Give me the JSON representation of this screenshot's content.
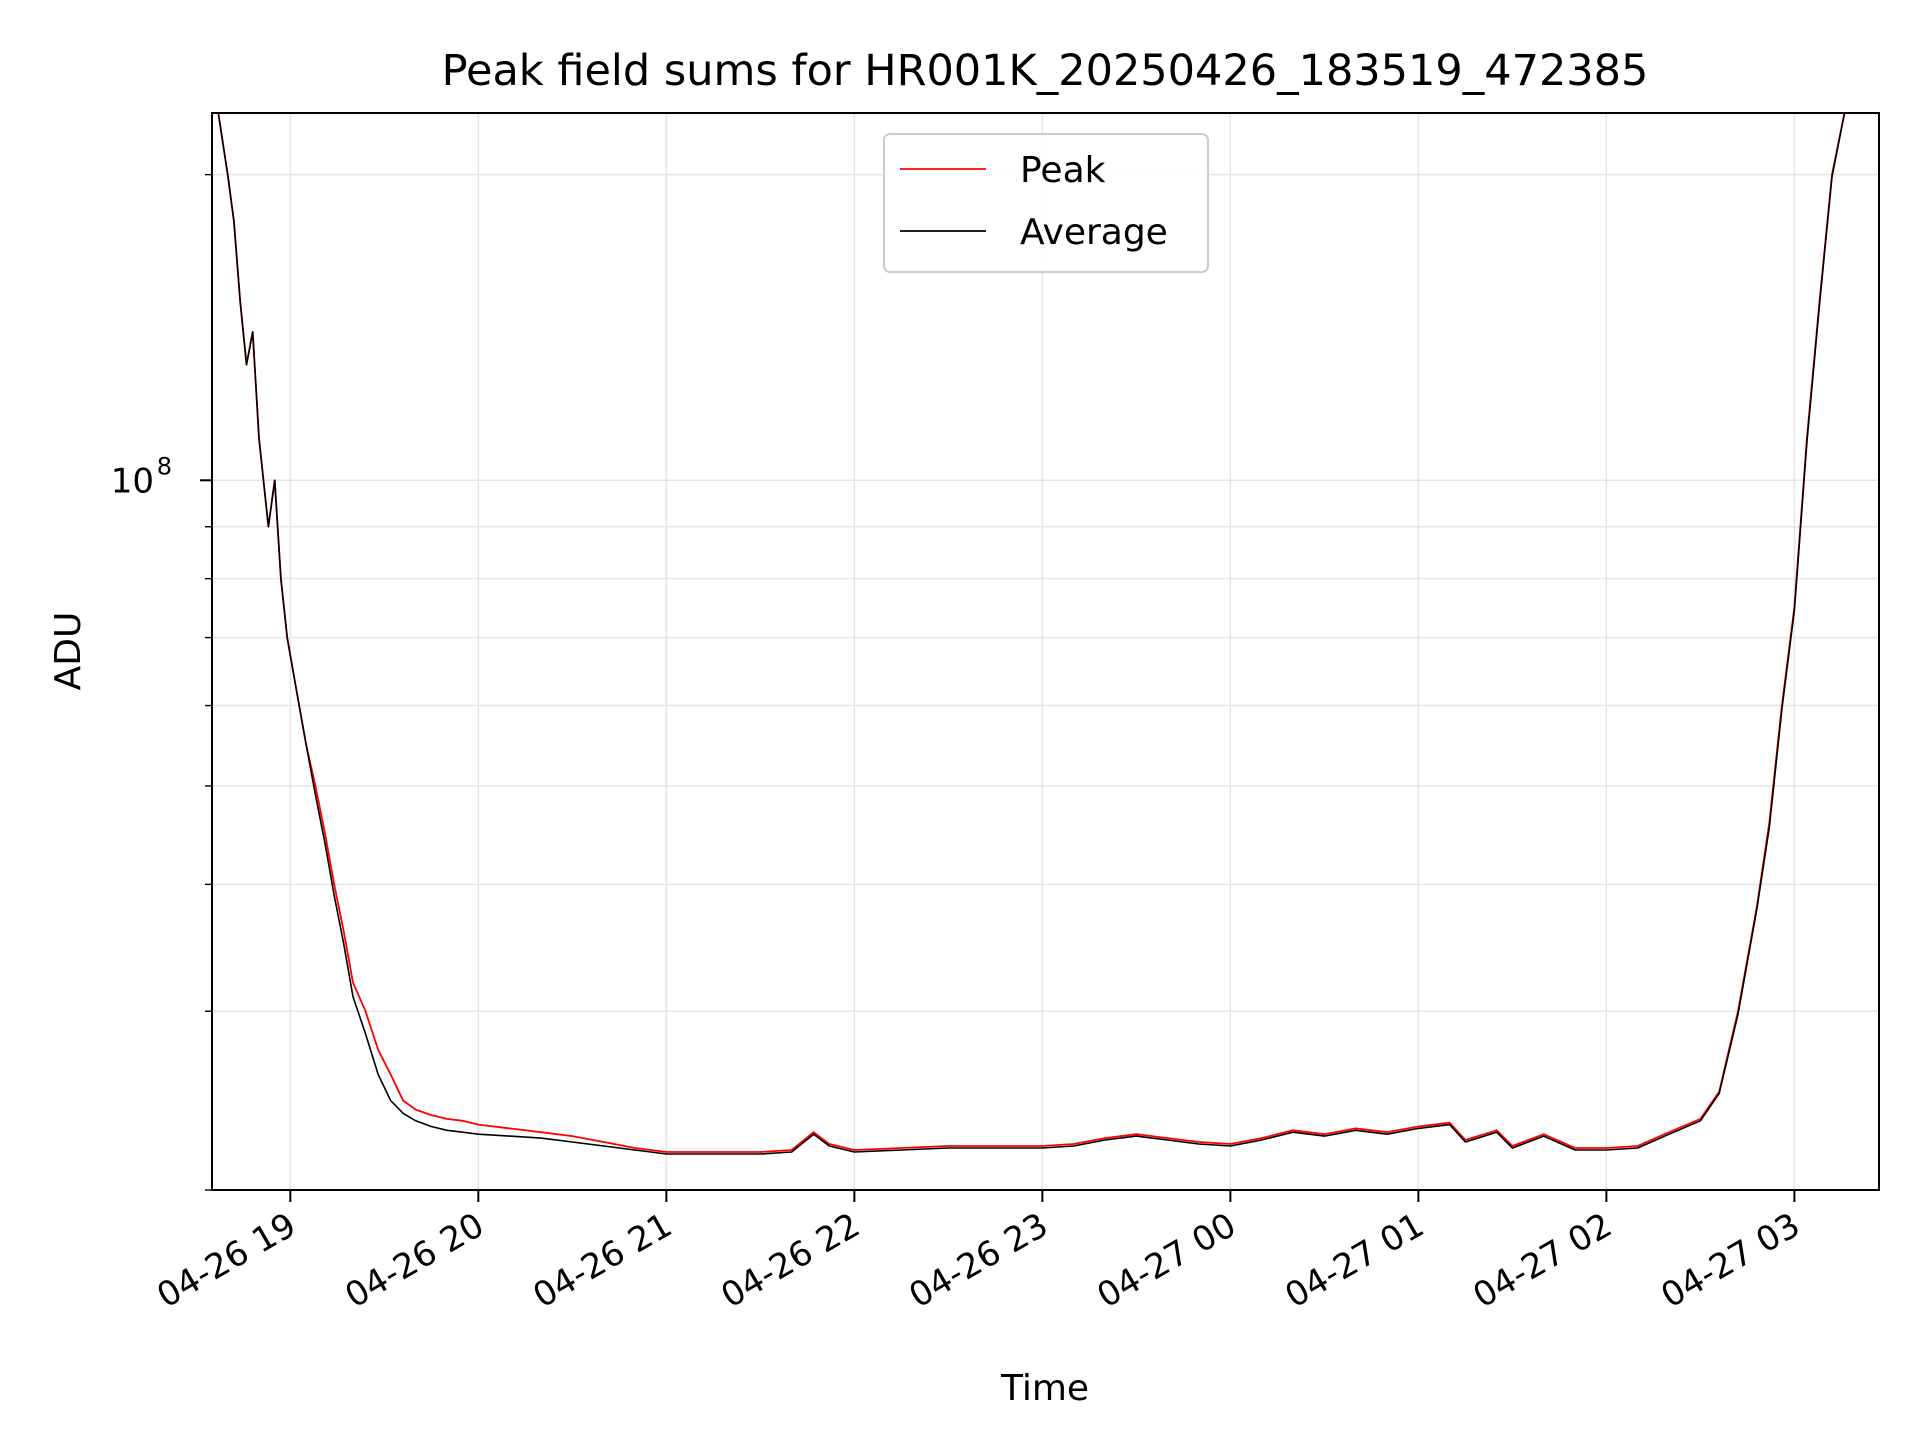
{
  "chart_data": {
    "type": "line",
    "title": "Peak field sums for HR001K_20250426_183519_472385",
    "xlabel": "Time",
    "ylabel": "ADU",
    "y_scale": "log",
    "xlim": [
      "2025-04-26 18:35",
      "2025-04-27 03:27"
    ],
    "ylim": [
      20000000,
      230000000
    ],
    "grid": true,
    "legend_position": "top-center",
    "x_ticks": [
      "04-26 19",
      "04-26 20",
      "04-26 21",
      "04-26 22",
      "04-26 23",
      "04-27 00",
      "04-27 01",
      "04-27 02",
      "04-27 03"
    ],
    "y_ticks": [
      {
        "value": 100000000,
        "label": "10",
        "exponent": "8"
      }
    ],
    "series": [
      {
        "name": "Peak",
        "color": "#ff0000",
        "points": [
          [
            "2025-04-26 18:37",
            230000000
          ],
          [
            "2025-04-26 18:40",
            200000000
          ],
          [
            "2025-04-26 18:42",
            180000000
          ],
          [
            "2025-04-26 18:44",
            150000000
          ],
          [
            "2025-04-26 18:46",
            130000000
          ],
          [
            "2025-04-26 18:48",
            140000000
          ],
          [
            "2025-04-26 18:50",
            110000000
          ],
          [
            "2025-04-26 18:53",
            90000000
          ],
          [
            "2025-04-26 18:55",
            100000000
          ],
          [
            "2025-04-26 18:57",
            80000000
          ],
          [
            "2025-04-26 18:59",
            70000000
          ],
          [
            "2025-04-26 19:02",
            62000000
          ],
          [
            "2025-04-26 19:05",
            55000000
          ],
          [
            "2025-04-26 19:08",
            50000000
          ],
          [
            "2025-04-26 19:11",
            45000000
          ],
          [
            "2025-04-26 19:14",
            40000000
          ],
          [
            "2025-04-26 19:17",
            36000000
          ],
          [
            "2025-04-26 19:20",
            32000000
          ],
          [
            "2025-04-26 19:24",
            30000000
          ],
          [
            "2025-04-26 19:28",
            27500000
          ],
          [
            "2025-04-26 19:32",
            26000000
          ],
          [
            "2025-04-26 19:36",
            24500000
          ],
          [
            "2025-04-26 19:40",
            24000000
          ],
          [
            "2025-04-26 19:45",
            23700000
          ],
          [
            "2025-04-26 19:50",
            23500000
          ],
          [
            "2025-04-26 19:55",
            23400000
          ],
          [
            "2025-04-26 20:00",
            23200000
          ],
          [
            "2025-04-26 20:10",
            23000000
          ],
          [
            "2025-04-26 20:20",
            22800000
          ],
          [
            "2025-04-26 20:30",
            22600000
          ],
          [
            "2025-04-26 20:40",
            22300000
          ],
          [
            "2025-04-26 20:50",
            22000000
          ],
          [
            "2025-04-26 21:00",
            21800000
          ],
          [
            "2025-04-26 21:15",
            21800000
          ],
          [
            "2025-04-26 21:30",
            21800000
          ],
          [
            "2025-04-26 21:40",
            21900000
          ],
          [
            "2025-04-26 21:47",
            22800000
          ],
          [
            "2025-04-26 21:52",
            22200000
          ],
          [
            "2025-04-26 22:00",
            21900000
          ],
          [
            "2025-04-26 22:15",
            22000000
          ],
          [
            "2025-04-26 22:30",
            22100000
          ],
          [
            "2025-04-26 22:45",
            22100000
          ],
          [
            "2025-04-26 23:00",
            22100000
          ],
          [
            "2025-04-26 23:10",
            22200000
          ],
          [
            "2025-04-26 23:20",
            22500000
          ],
          [
            "2025-04-26 23:30",
            22700000
          ],
          [
            "2025-04-26 23:40",
            22500000
          ],
          [
            "2025-04-26 23:50",
            22300000
          ],
          [
            "2025-04-27 00:00",
            22200000
          ],
          [
            "2025-04-27 00:10",
            22500000
          ],
          [
            "2025-04-27 00:20",
            22900000
          ],
          [
            "2025-04-27 00:30",
            22700000
          ],
          [
            "2025-04-27 00:40",
            23000000
          ],
          [
            "2025-04-27 00:50",
            22800000
          ],
          [
            "2025-04-27 01:00",
            23100000
          ],
          [
            "2025-04-27 01:10",
            23300000
          ],
          [
            "2025-04-27 01:15",
            22400000
          ],
          [
            "2025-04-27 01:25",
            22900000
          ],
          [
            "2025-04-27 01:30",
            22100000
          ],
          [
            "2025-04-27 01:40",
            22700000
          ],
          [
            "2025-04-27 01:50",
            22000000
          ],
          [
            "2025-04-27 02:00",
            22000000
          ],
          [
            "2025-04-27 02:10",
            22100000
          ],
          [
            "2025-04-27 02:20",
            22800000
          ],
          [
            "2025-04-27 02:30",
            23500000
          ],
          [
            "2025-04-27 02:36",
            25000000
          ],
          [
            "2025-04-27 02:42",
            30000000
          ],
          [
            "2025-04-27 02:48",
            38000000
          ],
          [
            "2025-04-27 02:52",
            46000000
          ],
          [
            "2025-04-27 02:56",
            60000000
          ],
          [
            "2025-04-27 03:00",
            75000000
          ],
          [
            "2025-04-27 03:04",
            110000000
          ],
          [
            "2025-04-27 03:08",
            150000000
          ],
          [
            "2025-04-27 03:12",
            200000000
          ],
          [
            "2025-04-27 03:16",
            230000000
          ]
        ]
      },
      {
        "name": "Average",
        "color": "#000000",
        "points": [
          [
            "2025-04-26 18:37",
            230000000
          ],
          [
            "2025-04-26 18:40",
            200000000
          ],
          [
            "2025-04-26 18:42",
            180000000
          ],
          [
            "2025-04-26 18:44",
            150000000
          ],
          [
            "2025-04-26 18:46",
            130000000
          ],
          [
            "2025-04-26 18:48",
            140000000
          ],
          [
            "2025-04-26 18:50",
            110000000
          ],
          [
            "2025-04-26 18:53",
            90000000
          ],
          [
            "2025-04-26 18:55",
            100000000
          ],
          [
            "2025-04-26 18:57",
            80000000
          ],
          [
            "2025-04-26 18:59",
            70000000
          ],
          [
            "2025-04-26 19:02",
            62000000
          ],
          [
            "2025-04-26 19:05",
            55000000
          ],
          [
            "2025-04-26 19:08",
            49000000
          ],
          [
            "2025-04-26 19:11",
            44000000
          ],
          [
            "2025-04-26 19:14",
            39000000
          ],
          [
            "2025-04-26 19:17",
            35000000
          ],
          [
            "2025-04-26 19:20",
            31000000
          ],
          [
            "2025-04-26 19:24",
            28500000
          ],
          [
            "2025-04-26 19:28",
            26000000
          ],
          [
            "2025-04-26 19:32",
            24500000
          ],
          [
            "2025-04-26 19:36",
            23800000
          ],
          [
            "2025-04-26 19:40",
            23400000
          ],
          [
            "2025-04-26 19:45",
            23100000
          ],
          [
            "2025-04-26 19:50",
            22900000
          ],
          [
            "2025-04-26 19:55",
            22800000
          ],
          [
            "2025-04-26 20:00",
            22700000
          ],
          [
            "2025-04-26 20:10",
            22600000
          ],
          [
            "2025-04-26 20:20",
            22500000
          ],
          [
            "2025-04-26 20:30",
            22300000
          ],
          [
            "2025-04-26 20:40",
            22100000
          ],
          [
            "2025-04-26 20:50",
            21900000
          ],
          [
            "2025-04-26 21:00",
            21700000
          ],
          [
            "2025-04-26 21:15",
            21700000
          ],
          [
            "2025-04-26 21:30",
            21700000
          ],
          [
            "2025-04-26 21:40",
            21800000
          ],
          [
            "2025-04-26 21:47",
            22700000
          ],
          [
            "2025-04-26 21:52",
            22100000
          ],
          [
            "2025-04-26 22:00",
            21800000
          ],
          [
            "2025-04-26 22:15",
            21900000
          ],
          [
            "2025-04-26 22:30",
            22000000
          ],
          [
            "2025-04-26 22:45",
            22000000
          ],
          [
            "2025-04-26 23:00",
            22000000
          ],
          [
            "2025-04-26 23:10",
            22100000
          ],
          [
            "2025-04-26 23:20",
            22400000
          ],
          [
            "2025-04-26 23:30",
            22600000
          ],
          [
            "2025-04-26 23:40",
            22400000
          ],
          [
            "2025-04-26 23:50",
            22200000
          ],
          [
            "2025-04-27 00:00",
            22100000
          ],
          [
            "2025-04-27 00:10",
            22400000
          ],
          [
            "2025-04-27 00:20",
            22800000
          ],
          [
            "2025-04-27 00:30",
            22600000
          ],
          [
            "2025-04-27 00:40",
            22900000
          ],
          [
            "2025-04-27 00:50",
            22700000
          ],
          [
            "2025-04-27 01:00",
            23000000
          ],
          [
            "2025-04-27 01:10",
            23200000
          ],
          [
            "2025-04-27 01:15",
            22300000
          ],
          [
            "2025-04-27 01:25",
            22800000
          ],
          [
            "2025-04-27 01:30",
            22000000
          ],
          [
            "2025-04-27 01:40",
            22600000
          ],
          [
            "2025-04-27 01:50",
            21900000
          ],
          [
            "2025-04-27 02:00",
            21900000
          ],
          [
            "2025-04-27 02:10",
            22000000
          ],
          [
            "2025-04-27 02:20",
            22700000
          ],
          [
            "2025-04-27 02:30",
            23400000
          ],
          [
            "2025-04-27 02:36",
            24900000
          ],
          [
            "2025-04-27 02:42",
            29800000
          ],
          [
            "2025-04-27 02:48",
            37800000
          ],
          [
            "2025-04-27 02:52",
            45500000
          ],
          [
            "2025-04-27 02:56",
            59500000
          ],
          [
            "2025-04-27 03:00",
            74500000
          ],
          [
            "2025-04-27 03:04",
            109000000
          ],
          [
            "2025-04-27 03:08",
            149000000
          ],
          [
            "2025-04-27 03:12",
            199000000
          ],
          [
            "2025-04-27 03:16",
            230000000
          ]
        ]
      }
    ]
  }
}
